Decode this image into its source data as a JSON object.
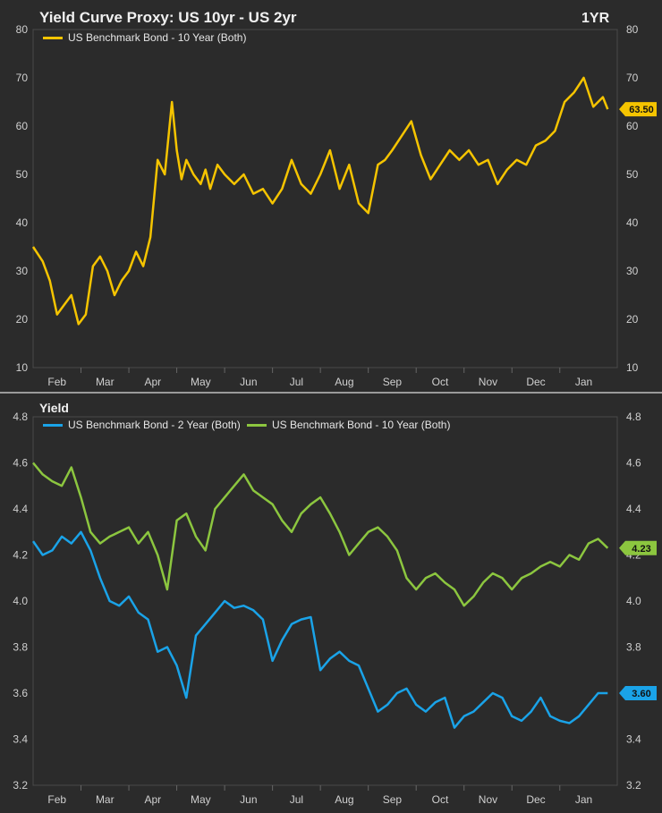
{
  "charts": {
    "top": {
      "title": "Yield Curve Proxy: US 10yr - US 2yr",
      "period": "1YR",
      "legend": [
        {
          "label": "US Benchmark Bond - 10 Year (Both)",
          "color": "#f5c400"
        }
      ],
      "last_value": "63.50"
    },
    "bottom": {
      "title": "Yield",
      "legend": [
        {
          "label": "US Benchmark Bond - 2 Year (Both)",
          "color": "#1aa3e8"
        },
        {
          "label": "US Benchmark Bond - 10 Year (Both)",
          "color": "#8cc63f"
        }
      ],
      "last_value_2y": "3.60",
      "last_value_10y": "4.23"
    }
  },
  "chart_data": [
    {
      "type": "line",
      "title": "Yield Curve Proxy: US 10yr - US 2yr",
      "ylim": [
        10,
        80
      ],
      "yticks": [
        10,
        20,
        30,
        40,
        50,
        60,
        70,
        80
      ],
      "months": [
        "Feb",
        "Mar",
        "Apr",
        "May",
        "Jun",
        "Jul",
        "Aug",
        "Sep",
        "Oct",
        "Nov",
        "Dec",
        "Jan"
      ],
      "x_range": [
        0,
        12.2
      ],
      "series": [
        {
          "name": "US Benchmark Bond - 10 Year (Both)",
          "color": "#f5c400",
          "x": [
            0,
            0.2,
            0.35,
            0.5,
            0.65,
            0.8,
            0.95,
            1.1,
            1.25,
            1.4,
            1.55,
            1.7,
            1.85,
            2.0,
            2.15,
            2.3,
            2.45,
            2.6,
            2.75,
            2.9,
            3.0,
            3.1,
            3.2,
            3.35,
            3.5,
            3.6,
            3.7,
            3.85,
            4.0,
            4.2,
            4.4,
            4.6,
            4.8,
            5.0,
            5.2,
            5.4,
            5.6,
            5.8,
            6.0,
            6.2,
            6.4,
            6.6,
            6.8,
            7.0,
            7.2,
            7.35,
            7.5,
            7.7,
            7.9,
            8.1,
            8.3,
            8.5,
            8.7,
            8.9,
            9.1,
            9.3,
            9.5,
            9.7,
            9.9,
            10.1,
            10.3,
            10.5,
            10.7,
            10.9,
            11.1,
            11.3,
            11.5,
            11.7,
            11.9,
            12.0
          ],
          "values": [
            35,
            32,
            28,
            21,
            23,
            25,
            19,
            21,
            31,
            33,
            30,
            25,
            28,
            30,
            34,
            31,
            37,
            53,
            50,
            65,
            55,
            49,
            53,
            50,
            48,
            51,
            47,
            52,
            50,
            48,
            50,
            46,
            47,
            44,
            47,
            53,
            48,
            46,
            50,
            55,
            47,
            52,
            44,
            42,
            52,
            53,
            55,
            58,
            61,
            54,
            49,
            52,
            55,
            53,
            55,
            52,
            53,
            48,
            51,
            53,
            52,
            56,
            57,
            59,
            65,
            67,
            70,
            64,
            66,
            63.5
          ]
        }
      ]
    },
    {
      "type": "line",
      "title": "Yield",
      "ylim": [
        3.2,
        4.8
      ],
      "yticks": [
        3.2,
        3.4,
        3.6,
        3.8,
        4.0,
        4.2,
        4.4,
        4.6,
        4.8
      ],
      "months": [
        "Feb",
        "Mar",
        "Apr",
        "May",
        "Jun",
        "Jul",
        "Aug",
        "Sep",
        "Oct",
        "Nov",
        "Dec",
        "Jan"
      ],
      "x_range": [
        0,
        12.2
      ],
      "series": [
        {
          "name": "US Benchmark Bond - 2 Year (Both)",
          "color": "#1aa3e8",
          "x": [
            0,
            0.2,
            0.4,
            0.6,
            0.8,
            1.0,
            1.2,
            1.4,
            1.6,
            1.8,
            2.0,
            2.2,
            2.4,
            2.6,
            2.8,
            3.0,
            3.2,
            3.4,
            3.6,
            3.8,
            4.0,
            4.2,
            4.4,
            4.6,
            4.8,
            5.0,
            5.2,
            5.4,
            5.6,
            5.8,
            6.0,
            6.2,
            6.4,
            6.6,
            6.8,
            7.0,
            7.2,
            7.4,
            7.6,
            7.8,
            8.0,
            8.2,
            8.4,
            8.6,
            8.8,
            9.0,
            9.2,
            9.4,
            9.6,
            9.8,
            10.0,
            10.2,
            10.4,
            10.6,
            10.8,
            11.0,
            11.2,
            11.4,
            11.6,
            11.8,
            12.0
          ],
          "values": [
            4.26,
            4.2,
            4.22,
            4.28,
            4.25,
            4.3,
            4.22,
            4.1,
            4.0,
            3.98,
            4.02,
            3.95,
            3.92,
            3.78,
            3.8,
            3.72,
            3.58,
            3.85,
            3.9,
            3.95,
            4.0,
            3.97,
            3.98,
            3.96,
            3.92,
            3.74,
            3.83,
            3.9,
            3.92,
            3.93,
            3.7,
            3.75,
            3.78,
            3.74,
            3.72,
            3.62,
            3.52,
            3.55,
            3.6,
            3.62,
            3.55,
            3.52,
            3.56,
            3.58,
            3.45,
            3.5,
            3.52,
            3.56,
            3.6,
            3.58,
            3.5,
            3.48,
            3.52,
            3.58,
            3.5,
            3.48,
            3.47,
            3.5,
            3.55,
            3.6,
            3.6
          ]
        },
        {
          "name": "US Benchmark Bond - 10 Year (Both)",
          "color": "#8cc63f",
          "x": [
            0,
            0.2,
            0.4,
            0.6,
            0.8,
            1.0,
            1.2,
            1.4,
            1.6,
            1.8,
            2.0,
            2.2,
            2.4,
            2.6,
            2.8,
            3.0,
            3.2,
            3.4,
            3.6,
            3.8,
            4.0,
            4.2,
            4.4,
            4.6,
            4.8,
            5.0,
            5.2,
            5.4,
            5.6,
            5.8,
            6.0,
            6.2,
            6.4,
            6.6,
            6.8,
            7.0,
            7.2,
            7.4,
            7.6,
            7.8,
            8.0,
            8.2,
            8.4,
            8.6,
            8.8,
            9.0,
            9.2,
            9.4,
            9.6,
            9.8,
            10.0,
            10.2,
            10.4,
            10.6,
            10.8,
            11.0,
            11.2,
            11.4,
            11.6,
            11.8,
            12.0
          ],
          "values": [
            4.6,
            4.55,
            4.52,
            4.5,
            4.58,
            4.45,
            4.3,
            4.25,
            4.28,
            4.3,
            4.32,
            4.25,
            4.3,
            4.2,
            4.05,
            4.35,
            4.38,
            4.28,
            4.22,
            4.4,
            4.45,
            4.5,
            4.55,
            4.48,
            4.45,
            4.42,
            4.35,
            4.3,
            4.38,
            4.42,
            4.45,
            4.38,
            4.3,
            4.2,
            4.25,
            4.3,
            4.32,
            4.28,
            4.22,
            4.1,
            4.05,
            4.1,
            4.12,
            4.08,
            4.05,
            3.98,
            4.02,
            4.08,
            4.12,
            4.1,
            4.05,
            4.1,
            4.12,
            4.15,
            4.17,
            4.15,
            4.2,
            4.18,
            4.25,
            4.27,
            4.23
          ]
        }
      ]
    }
  ]
}
